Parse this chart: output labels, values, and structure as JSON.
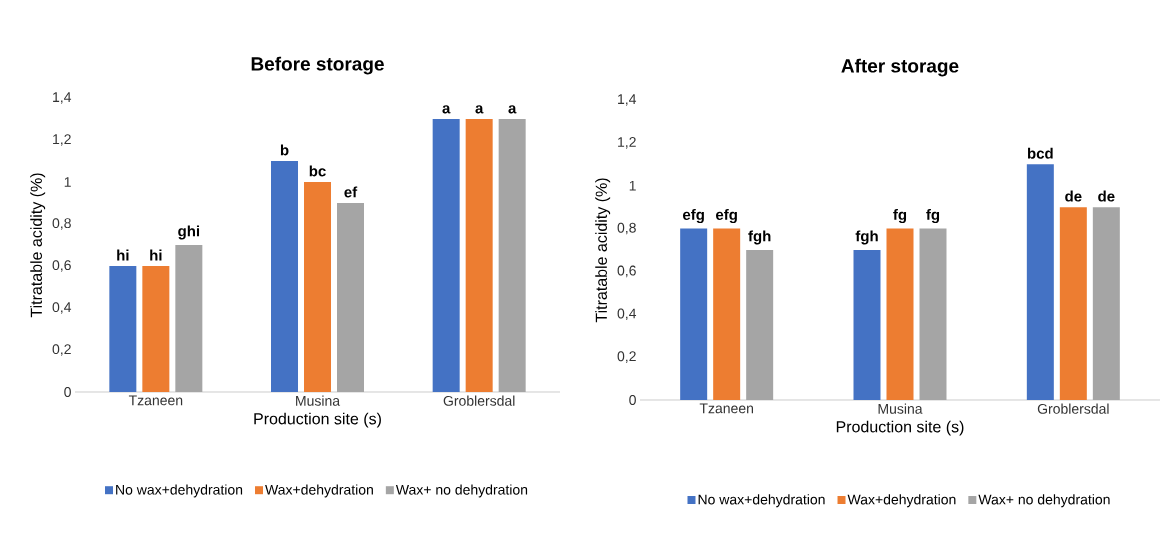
{
  "chart_data": [
    {
      "type": "bar",
      "title": "Before storage",
      "xlabel": "Production site (s)",
      "ylabel": "Titratable acidity (%)",
      "categories": [
        "Tzaneen",
        "Musina",
        "Groblersdal"
      ],
      "series": [
        {
          "name": "No wax+dehydration",
          "color": "#4472c4",
          "values": [
            0.6,
            1.1,
            1.3
          ],
          "value_labels": [
            "hi",
            "b",
            "a"
          ]
        },
        {
          "name": "Wax+dehydration",
          "color": "#ed7d31",
          "values": [
            0.6,
            1.0,
            1.3
          ],
          "value_labels": [
            "hi",
            "bc",
            "a"
          ]
        },
        {
          "name": "Wax+ no dehydration",
          "color": "#a5a5a5",
          "values": [
            0.7,
            0.9,
            1.3
          ],
          "value_labels": [
            "ghi",
            "ef",
            "a"
          ]
        }
      ],
      "ylim": [
        0,
        1.4
      ],
      "yticks": [
        0,
        {
          "value": 0.2,
          "label": "0,2"
        },
        {
          "value": 0.4,
          "label": "0,4"
        },
        {
          "value": 0.6,
          "label": "0,6"
        },
        {
          "value": 0.8,
          "label": "0,8"
        },
        1,
        {
          "value": 1.2,
          "label": "1,2"
        },
        {
          "value": 1.4,
          "label": "1,4"
        }
      ],
      "legend": "bottom"
    },
    {
      "type": "bar",
      "title": "After storage",
      "xlabel": "Production site (s)",
      "ylabel": "Titratable acidity (%)",
      "categories": [
        "Tzaneen",
        "Musina",
        "Groblersdal"
      ],
      "series": [
        {
          "name": "No wax+dehydration",
          "color": "#4472c4",
          "values": [
            0.8,
            0.7,
            1.1
          ],
          "value_labels": [
            "efg",
            "fgh",
            "bcd"
          ]
        },
        {
          "name": "Wax+dehydration",
          "color": "#ed7d31",
          "values": [
            0.8,
            0.8,
            0.9
          ],
          "value_labels": [
            "efg",
            "fg",
            "de"
          ]
        },
        {
          "name": "Wax+ no dehydration",
          "color": "#a5a5a5",
          "values": [
            0.7,
            0.8,
            0.9
          ],
          "value_labels": [
            "fgh",
            "fg",
            "de"
          ]
        }
      ],
      "ylim": [
        0,
        1.4
      ],
      "yticks": [
        0,
        {
          "value": 0.2,
          "label": "0,2"
        },
        {
          "value": 0.4,
          "label": "0,4"
        },
        {
          "value": 0.6,
          "label": "0,6"
        },
        {
          "value": 0.8,
          "label": "0,8"
        },
        1,
        {
          "value": 1.2,
          "label": "1,2"
        },
        {
          "value": 1.4,
          "label": "1,4"
        }
      ],
      "legend": "bottom"
    }
  ]
}
